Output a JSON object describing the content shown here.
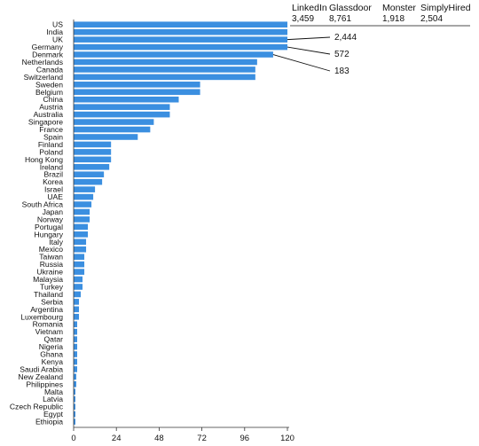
{
  "chart_data": {
    "type": "bar",
    "orientation": "horizontal",
    "bar_color": "#3b8fe0",
    "categories": [
      "US",
      "India",
      "UK",
      "Germany",
      "Denmark",
      "Netherlands",
      "Canada",
      "Switzerland",
      "Sweden",
      "Belgium",
      "China",
      "Austria",
      "Australia",
      "Singapore",
      "France",
      "Spain",
      "Finland",
      "Poland",
      "Hong Kong",
      "Ireland",
      "Brazil",
      "Korea",
      "Israel",
      "UAE",
      "South Africa",
      "Japan",
      "Norway",
      "Portugal",
      "Hungary",
      "Italy",
      "Mexico",
      "Taiwan",
      "Russia",
      "Ukraine",
      "Malaysia",
      "Turkey",
      "Thailand",
      "Serbia",
      "Argentina",
      "Luxembourg",
      "Romania",
      "Vietnam",
      "Qatar",
      "Nigeria",
      "Ghana",
      "Kenya",
      "Saudi Arabia",
      "New Zealand",
      "Philippines",
      "Malta",
      "Latvia",
      "Czech Republic",
      "Egypt",
      "Ethiopia"
    ],
    "values": [
      120,
      120,
      120,
      120,
      112,
      103,
      102,
      102,
      71,
      71,
      59,
      54,
      54,
      45,
      43,
      36,
      21,
      21,
      21,
      20,
      17,
      16,
      12,
      11,
      10,
      9,
      9,
      8,
      8,
      7,
      7,
      6,
      6,
      6,
      5,
      5,
      4,
      3,
      3,
      3,
      2,
      2,
      2,
      2,
      2,
      2,
      2,
      1.5,
      1.5,
      1,
      1,
      1,
      1,
      1
    ],
    "xlim": [
      0,
      120
    ],
    "xticks": [
      "0",
      "24",
      "48",
      "72",
      "96",
      "120"
    ],
    "grid": false,
    "legend": {
      "placement": "top-right",
      "entries": [
        {
          "name": "LinkedIn",
          "value": "3,459"
        },
        {
          "name": "Glassdoor",
          "value": "8,761"
        },
        {
          "name": "Monster",
          "value": "1,918"
        },
        {
          "name": "SimplyHired",
          "value": "2,504"
        }
      ]
    },
    "callouts": [
      {
        "category": "UK",
        "label": "2,444"
      },
      {
        "category": "Germany",
        "label": "572"
      },
      {
        "category": "Denmark",
        "label": "183"
      }
    ]
  }
}
